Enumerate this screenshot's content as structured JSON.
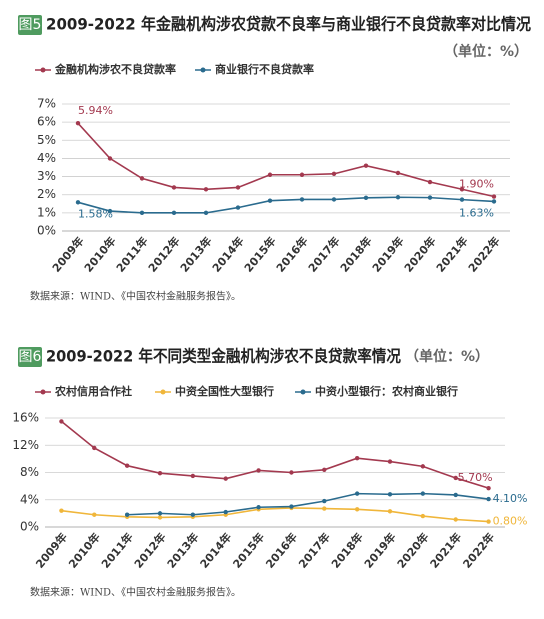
{
  "chart_data": [
    {
      "type": "line",
      "badge": "图5",
      "title": "2009-2022 年金融机构涉农贷款不良率与商业银行不良贷款率对比情况",
      "unit": "（单位：%）",
      "categories": [
        "2009年",
        "2010年",
        "2011年",
        "2012年",
        "2013年",
        "2014年",
        "2015年",
        "2016年",
        "2017年",
        "2018年",
        "2019年",
        "2020年",
        "2021年",
        "2022年"
      ],
      "series": [
        {
          "name": "金融机构涉农不良贷款率",
          "color": "#a3394f",
          "values": [
            5.94,
            4.0,
            2.9,
            2.4,
            2.3,
            2.4,
            3.1,
            3.1,
            3.15,
            3.6,
            3.2,
            2.7,
            2.3,
            1.9
          ],
          "value_labels": [
            "5.94%",
            null,
            null,
            null,
            null,
            null,
            null,
            null,
            null,
            null,
            null,
            null,
            null,
            "1.90%"
          ]
        },
        {
          "name": "商业银行不良贷款率",
          "color": "#2a6b8e",
          "values": [
            1.58,
            1.1,
            1.0,
            1.0,
            1.0,
            1.29,
            1.67,
            1.74,
            1.74,
            1.83,
            1.86,
            1.84,
            1.73,
            1.63
          ],
          "value_labels": [
            "1.58%",
            null,
            null,
            null,
            null,
            null,
            null,
            null,
            null,
            null,
            null,
            null,
            null,
            "1.63%"
          ]
        }
      ],
      "ylim": [
        0,
        7
      ],
      "yticks": [
        {
          "value": 0,
          "label": "0%"
        },
        {
          "value": 1,
          "label": "1%"
        },
        {
          "value": 2,
          "label": "2%"
        },
        {
          "value": 3,
          "label": "3%"
        },
        {
          "value": 4,
          "label": "4%"
        },
        {
          "value": 5,
          "label": "5%"
        },
        {
          "value": 6,
          "label": "6%"
        },
        {
          "value": 7,
          "label": "7%"
        }
      ],
      "grid": true,
      "source": "数据来源：WIND、《中国农村金融服务报告》。"
    },
    {
      "type": "line",
      "badge": "图6",
      "title": "2009-2022 年不同类型金融机构涉农不良贷款率情况",
      "unit": "（单位：%）",
      "categories": [
        "2009年",
        "2010年",
        "2011年",
        "2012年",
        "2013年",
        "2014年",
        "2015年",
        "2016年",
        "2017年",
        "2018年",
        "2019年",
        "2020年",
        "2021年",
        "2022年"
      ],
      "series": [
        {
          "name": "农村信用合作社",
          "color": "#a3394f",
          "values": [
            15.5,
            11.6,
            9.0,
            7.9,
            7.5,
            7.1,
            8.3,
            8.0,
            8.4,
            10.1,
            9.6,
            8.9,
            7.2,
            5.7
          ],
          "value_labels": [
            null,
            null,
            null,
            null,
            null,
            null,
            null,
            null,
            null,
            null,
            null,
            null,
            null,
            "5.70%"
          ]
        },
        {
          "name": "中资全国性大型银行",
          "color": "#f0b63a",
          "values": [
            2.4,
            1.8,
            1.5,
            1.4,
            1.5,
            1.8,
            2.6,
            2.8,
            2.7,
            2.6,
            2.3,
            1.6,
            1.1,
            0.8
          ],
          "value_labels": [
            null,
            null,
            null,
            null,
            null,
            null,
            null,
            null,
            null,
            null,
            null,
            null,
            null,
            "0.80%"
          ]
        },
        {
          "name": "中资小型银行：农村商业银行",
          "color": "#2a6b8e",
          "values": [
            null,
            null,
            1.8,
            2.0,
            1.8,
            2.2,
            2.9,
            3.0,
            3.8,
            4.9,
            4.8,
            4.9,
            4.7,
            4.1
          ],
          "value_labels": [
            null,
            null,
            null,
            null,
            null,
            null,
            null,
            null,
            null,
            null,
            null,
            null,
            null,
            "4.10%"
          ]
        }
      ],
      "ylim": [
        0,
        16
      ],
      "yticks": [
        {
          "value": 0,
          "label": "0%"
        },
        {
          "value": 4,
          "label": "4%"
        },
        {
          "value": 8,
          "label": "8%"
        },
        {
          "value": 12,
          "label": "12%"
        },
        {
          "value": 16,
          "label": "16%"
        }
      ],
      "grid": true,
      "source": "数据来源：WIND、《中国农村金融服务报告》。"
    }
  ]
}
